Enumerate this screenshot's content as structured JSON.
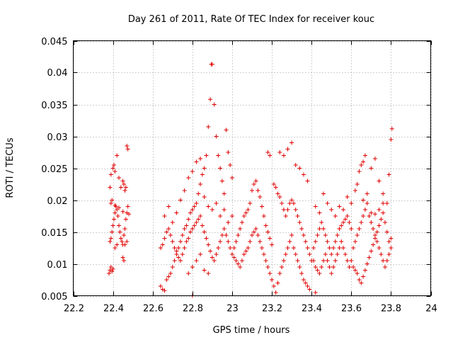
{
  "chart_data": {
    "type": "scatter",
    "title": "Day 261 of 2011, Rate Of TEC Index for receiver kouc",
    "xlabel": "GPS time / hours",
    "ylabel": "ROTI / TECUs",
    "xlim": [
      22.2,
      24.0
    ],
    "ylim": [
      0.005,
      0.045
    ],
    "xticks": [
      22.2,
      22.4,
      22.6,
      22.8,
      23.0,
      23.2,
      23.4,
      23.6,
      23.8,
      24.0
    ],
    "xtick_labels": [
      "22.2",
      "22.4",
      "22.6",
      "22.8",
      "23",
      "23.2",
      "23.4",
      "23.6",
      "23.8",
      "24"
    ],
    "yticks": [
      0.005,
      0.01,
      0.015,
      0.02,
      0.025,
      0.03,
      0.035,
      0.04,
      0.045
    ],
    "ytick_labels": [
      "0.005",
      "0.01",
      "0.015",
      "0.02",
      "0.025",
      "0.03",
      "0.035",
      "0.04",
      "0.045"
    ],
    "grid": true,
    "marker": "plus",
    "color": "#e00000",
    "points": [
      [
        22.38,
        0.0085
      ],
      [
        22.385,
        0.009
      ],
      [
        22.39,
        0.0095
      ],
      [
        22.395,
        0.0088
      ],
      [
        22.4,
        0.0092
      ],
      [
        22.385,
        0.0135
      ],
      [
        22.39,
        0.014
      ],
      [
        22.395,
        0.015
      ],
      [
        22.4,
        0.016
      ],
      [
        22.405,
        0.017
      ],
      [
        22.41,
        0.018
      ],
      [
        22.415,
        0.019
      ],
      [
        22.42,
        0.0185
      ],
      [
        22.425,
        0.0175
      ],
      [
        22.43,
        0.016
      ],
      [
        22.435,
        0.015
      ],
      [
        22.44,
        0.014
      ],
      [
        22.445,
        0.0135
      ],
      [
        22.45,
        0.013
      ],
      [
        22.455,
        0.0145
      ],
      [
        22.46,
        0.0155
      ],
      [
        22.465,
        0.017
      ],
      [
        22.47,
        0.018
      ],
      [
        22.475,
        0.019
      ],
      [
        22.48,
        0.0178
      ],
      [
        22.385,
        0.022
      ],
      [
        22.39,
        0.024
      ],
      [
        22.4,
        0.025
      ],
      [
        22.405,
        0.0255
      ],
      [
        22.41,
        0.0245
      ],
      [
        22.42,
        0.027
      ],
      [
        22.43,
        0.0235
      ],
      [
        22.44,
        0.022
      ],
      [
        22.45,
        0.023
      ],
      [
        22.455,
        0.0225
      ],
      [
        22.46,
        0.0215
      ],
      [
        22.465,
        0.022
      ],
      [
        22.47,
        0.0285
      ],
      [
        22.475,
        0.028
      ],
      [
        22.45,
        0.011
      ],
      [
        22.455,
        0.0105
      ],
      [
        22.39,
        0.0195
      ],
      [
        22.395,
        0.02
      ],
      [
        22.41,
        0.0192
      ],
      [
        22.43,
        0.0188
      ],
      [
        22.45,
        0.0182
      ],
      [
        22.46,
        0.013
      ],
      [
        22.47,
        0.0135
      ],
      [
        22.41,
        0.0125
      ],
      [
        22.42,
        0.013
      ],
      [
        22.64,
        0.0065
      ],
      [
        22.65,
        0.006
      ],
      [
        22.66,
        0.0058
      ],
      [
        22.67,
        0.0075
      ],
      [
        22.68,
        0.008
      ],
      [
        22.69,
        0.0085
      ],
      [
        22.7,
        0.0095
      ],
      [
        22.71,
        0.0105
      ],
      [
        22.72,
        0.0115
      ],
      [
        22.73,
        0.0125
      ],
      [
        22.74,
        0.0135
      ],
      [
        22.75,
        0.0145
      ],
      [
        22.76,
        0.0155
      ],
      [
        22.77,
        0.016
      ],
      [
        22.78,
        0.017
      ],
      [
        22.79,
        0.018
      ],
      [
        22.8,
        0.0185
      ],
      [
        22.81,
        0.019
      ],
      [
        22.82,
        0.0195
      ],
      [
        22.83,
        0.021
      ],
      [
        22.84,
        0.0225
      ],
      [
        22.85,
        0.024
      ],
      [
        22.86,
        0.025
      ],
      [
        22.87,
        0.027
      ],
      [
        22.88,
        0.0315
      ],
      [
        22.89,
        0.0358
      ],
      [
        22.895,
        0.0413
      ],
      [
        22.9,
        0.0413
      ],
      [
        22.91,
        0.035
      ],
      [
        22.92,
        0.03
      ],
      [
        22.93,
        0.027
      ],
      [
        22.94,
        0.025
      ],
      [
        22.95,
        0.023
      ],
      [
        22.96,
        0.021
      ],
      [
        22.97,
        0.031
      ],
      [
        22.98,
        0.0275
      ],
      [
        22.99,
        0.0255
      ],
      [
        23.0,
        0.0235
      ],
      [
        22.64,
        0.0125
      ],
      [
        22.65,
        0.013
      ],
      [
        22.66,
        0.014
      ],
      [
        22.67,
        0.015
      ],
      [
        22.68,
        0.0155
      ],
      [
        22.69,
        0.0145
      ],
      [
        22.7,
        0.0135
      ],
      [
        22.71,
        0.0125
      ],
      [
        22.72,
        0.012
      ],
      [
        22.73,
        0.011
      ],
      [
        22.74,
        0.0105
      ],
      [
        22.75,
        0.0115
      ],
      [
        22.76,
        0.0125
      ],
      [
        22.77,
        0.0135
      ],
      [
        22.78,
        0.014
      ],
      [
        22.79,
        0.015
      ],
      [
        22.8,
        0.0155
      ],
      [
        22.81,
        0.016
      ],
      [
        22.82,
        0.0165
      ],
      [
        22.83,
        0.017
      ],
      [
        22.84,
        0.0175
      ],
      [
        22.85,
        0.016
      ],
      [
        22.86,
        0.015
      ],
      [
        22.87,
        0.014
      ],
      [
        22.88,
        0.013
      ],
      [
        22.89,
        0.012
      ],
      [
        22.9,
        0.011
      ],
      [
        22.91,
        0.0105
      ],
      [
        22.92,
        0.0115
      ],
      [
        22.93,
        0.0125
      ],
      [
        22.94,
        0.0135
      ],
      [
        22.95,
        0.0145
      ],
      [
        22.96,
        0.0155
      ],
      [
        22.97,
        0.0145
      ],
      [
        22.98,
        0.0135
      ],
      [
        22.99,
        0.0125
      ],
      [
        23.0,
        0.0115
      ],
      [
        22.66,
        0.0175
      ],
      [
        22.68,
        0.019
      ],
      [
        22.7,
        0.0165
      ],
      [
        22.72,
        0.018
      ],
      [
        22.74,
        0.02
      ],
      [
        22.76,
        0.0215
      ],
      [
        22.78,
        0.0235
      ],
      [
        22.8,
        0.0245
      ],
      [
        22.82,
        0.026
      ],
      [
        22.84,
        0.0265
      ],
      [
        22.86,
        0.0205
      ],
      [
        22.88,
        0.019
      ],
      [
        22.9,
        0.0185
      ],
      [
        22.92,
        0.0195
      ],
      [
        22.94,
        0.0175
      ],
      [
        22.96,
        0.0185
      ],
      [
        22.98,
        0.0165
      ],
      [
        23.0,
        0.0175
      ],
      [
        22.78,
        0.0085
      ],
      [
        22.8,
        0.0095
      ],
      [
        22.82,
        0.0105
      ],
      [
        22.84,
        0.0115
      ],
      [
        22.86,
        0.009
      ],
      [
        22.88,
        0.0085
      ],
      [
        22.8,
        0.005
      ],
      [
        23.01,
        0.0125
      ],
      [
        23.02,
        0.0135
      ],
      [
        23.03,
        0.0145
      ],
      [
        23.04,
        0.0155
      ],
      [
        23.05,
        0.0165
      ],
      [
        23.06,
        0.0175
      ],
      [
        23.07,
        0.018
      ],
      [
        23.08,
        0.0185
      ],
      [
        23.09,
        0.0195
      ],
      [
        23.1,
        0.0215
      ],
      [
        23.11,
        0.0225
      ],
      [
        23.12,
        0.023
      ],
      [
        23.13,
        0.0215
      ],
      [
        23.14,
        0.0205
      ],
      [
        23.15,
        0.019
      ],
      [
        23.16,
        0.0175
      ],
      [
        23.17,
        0.016
      ],
      [
        23.18,
        0.015
      ],
      [
        23.19,
        0.014
      ],
      [
        23.2,
        0.013
      ],
      [
        23.01,
        0.011
      ],
      [
        23.02,
        0.0105
      ],
      [
        23.03,
        0.01
      ],
      [
        23.04,
        0.0095
      ],
      [
        23.05,
        0.0105
      ],
      [
        23.06,
        0.0115
      ],
      [
        23.07,
        0.012
      ],
      [
        23.08,
        0.0125
      ],
      [
        23.09,
        0.0135
      ],
      [
        23.1,
        0.0145
      ],
      [
        23.11,
        0.015
      ],
      [
        23.12,
        0.0155
      ],
      [
        23.13,
        0.0145
      ],
      [
        23.14,
        0.0135
      ],
      [
        23.15,
        0.0125
      ],
      [
        23.16,
        0.0115
      ],
      [
        23.17,
        0.0105
      ],
      [
        23.18,
        0.0095
      ],
      [
        23.19,
        0.0085
      ],
      [
        23.2,
        0.0075
      ],
      [
        23.21,
        0.0065
      ],
      [
        23.22,
        0.0055
      ],
      [
        23.23,
        0.007
      ],
      [
        23.24,
        0.0085
      ],
      [
        23.25,
        0.0095
      ],
      [
        23.26,
        0.0105
      ],
      [
        23.27,
        0.0115
      ],
      [
        23.28,
        0.0125
      ],
      [
        23.29,
        0.0135
      ],
      [
        23.3,
        0.0145
      ],
      [
        23.18,
        0.0275
      ],
      [
        23.19,
        0.027
      ],
      [
        23.24,
        0.0275
      ],
      [
        23.26,
        0.027
      ],
      [
        23.28,
        0.028
      ],
      [
        23.3,
        0.029
      ],
      [
        23.32,
        0.0255
      ],
      [
        23.34,
        0.025
      ],
      [
        23.36,
        0.024
      ],
      [
        23.38,
        0.023
      ],
      [
        23.21,
        0.0225
      ],
      [
        23.22,
        0.022
      ],
      [
        23.23,
        0.021
      ],
      [
        23.24,
        0.0205
      ],
      [
        23.25,
        0.0195
      ],
      [
        23.26,
        0.0185
      ],
      [
        23.27,
        0.0175
      ],
      [
        23.28,
        0.0185
      ],
      [
        23.29,
        0.0195
      ],
      [
        23.3,
        0.02
      ],
      [
        23.31,
        0.0195
      ],
      [
        23.32,
        0.0185
      ],
      [
        23.33,
        0.0175
      ],
      [
        23.34,
        0.0165
      ],
      [
        23.35,
        0.0155
      ],
      [
        23.36,
        0.0145
      ],
      [
        23.37,
        0.0135
      ],
      [
        23.38,
        0.0125
      ],
      [
        23.39,
        0.0115
      ],
      [
        23.4,
        0.0105
      ],
      [
        23.31,
        0.0125
      ],
      [
        23.32,
        0.0115
      ],
      [
        23.33,
        0.0105
      ],
      [
        23.34,
        0.0095
      ],
      [
        23.35,
        0.0085
      ],
      [
        23.36,
        0.0075
      ],
      [
        23.37,
        0.007
      ],
      [
        23.38,
        0.0065
      ],
      [
        23.39,
        0.006
      ],
      [
        23.42,
        0.0055
      ],
      [
        23.41,
        0.0125
      ],
      [
        23.42,
        0.0135
      ],
      [
        23.43,
        0.0145
      ],
      [
        23.44,
        0.0155
      ],
      [
        23.45,
        0.0165
      ],
      [
        23.46,
        0.0155
      ],
      [
        23.47,
        0.0145
      ],
      [
        23.48,
        0.0135
      ],
      [
        23.49,
        0.0125
      ],
      [
        23.5,
        0.0115
      ],
      [
        23.51,
        0.0125
      ],
      [
        23.52,
        0.0135
      ],
      [
        23.53,
        0.0145
      ],
      [
        23.54,
        0.0155
      ],
      [
        23.55,
        0.016
      ],
      [
        23.56,
        0.0165
      ],
      [
        23.57,
        0.017
      ],
      [
        23.58,
        0.0175
      ],
      [
        23.59,
        0.0165
      ],
      [
        23.6,
        0.0155
      ],
      [
        23.41,
        0.0105
      ],
      [
        23.42,
        0.0095
      ],
      [
        23.43,
        0.009
      ],
      [
        23.44,
        0.0085
      ],
      [
        23.45,
        0.0095
      ],
      [
        23.46,
        0.0105
      ],
      [
        23.47,
        0.0115
      ],
      [
        23.48,
        0.0105
      ],
      [
        23.49,
        0.0095
      ],
      [
        23.5,
        0.0085
      ],
      [
        23.51,
        0.0095
      ],
      [
        23.52,
        0.0105
      ],
      [
        23.53,
        0.0115
      ],
      [
        23.54,
        0.0125
      ],
      [
        23.55,
        0.0135
      ],
      [
        23.56,
        0.0125
      ],
      [
        23.57,
        0.0115
      ],
      [
        23.58,
        0.0105
      ],
      [
        23.59,
        0.0095
      ],
      [
        23.6,
        0.0105
      ],
      [
        23.42,
        0.019
      ],
      [
        23.44,
        0.018
      ],
      [
        23.46,
        0.021
      ],
      [
        23.48,
        0.0195
      ],
      [
        23.5,
        0.0185
      ],
      [
        23.52,
        0.0175
      ],
      [
        23.54,
        0.019
      ],
      [
        23.56,
        0.0185
      ],
      [
        23.58,
        0.0205
      ],
      [
        23.6,
        0.0195
      ],
      [
        23.61,
        0.0125
      ],
      [
        23.62,
        0.0135
      ],
      [
        23.63,
        0.0145
      ],
      [
        23.64,
        0.0155
      ],
      [
        23.65,
        0.0165
      ],
      [
        23.66,
        0.0175
      ],
      [
        23.67,
        0.0185
      ],
      [
        23.68,
        0.0195
      ],
      [
        23.69,
        0.0175
      ],
      [
        23.7,
        0.0165
      ],
      [
        23.71,
        0.0155
      ],
      [
        23.72,
        0.0145
      ],
      [
        23.73,
        0.0135
      ],
      [
        23.74,
        0.0125
      ],
      [
        23.75,
        0.0115
      ],
      [
        23.76,
        0.0105
      ],
      [
        23.77,
        0.0095
      ],
      [
        23.78,
        0.0105
      ],
      [
        23.79,
        0.0115
      ],
      [
        23.8,
        0.0125
      ],
      [
        23.61,
        0.0095
      ],
      [
        23.62,
        0.009
      ],
      [
        23.63,
        0.0085
      ],
      [
        23.64,
        0.0075
      ],
      [
        23.65,
        0.007
      ],
      [
        23.66,
        0.008
      ],
      [
        23.67,
        0.009
      ],
      [
        23.68,
        0.01
      ],
      [
        23.69,
        0.011
      ],
      [
        23.7,
        0.012
      ],
      [
        23.71,
        0.013
      ],
      [
        23.72,
        0.014
      ],
      [
        23.73,
        0.015
      ],
      [
        23.74,
        0.016
      ],
      [
        23.75,
        0.017
      ],
      [
        23.76,
        0.018
      ],
      [
        23.77,
        0.0165
      ],
      [
        23.78,
        0.015
      ],
      [
        23.79,
        0.0135
      ],
      [
        23.8,
        0.014
      ],
      [
        23.62,
        0.0215
      ],
      [
        23.63,
        0.0225
      ],
      [
        23.64,
        0.0245
      ],
      [
        23.65,
        0.0255
      ],
      [
        23.66,
        0.026
      ],
      [
        23.67,
        0.027
      ],
      [
        23.7,
        0.025
      ],
      [
        23.72,
        0.0265
      ],
      [
        23.74,
        0.023
      ],
      [
        23.76,
        0.021
      ],
      [
        23.79,
        0.024
      ],
      [
        23.8,
        0.0295
      ],
      [
        23.805,
        0.0312
      ],
      [
        23.78,
        0.0195
      ],
      [
        23.76,
        0.0195
      ],
      [
        23.74,
        0.0185
      ],
      [
        23.72,
        0.0178
      ],
      [
        23.7,
        0.018
      ],
      [
        23.68,
        0.021
      ],
      [
        23.66,
        0.02
      ]
    ]
  }
}
